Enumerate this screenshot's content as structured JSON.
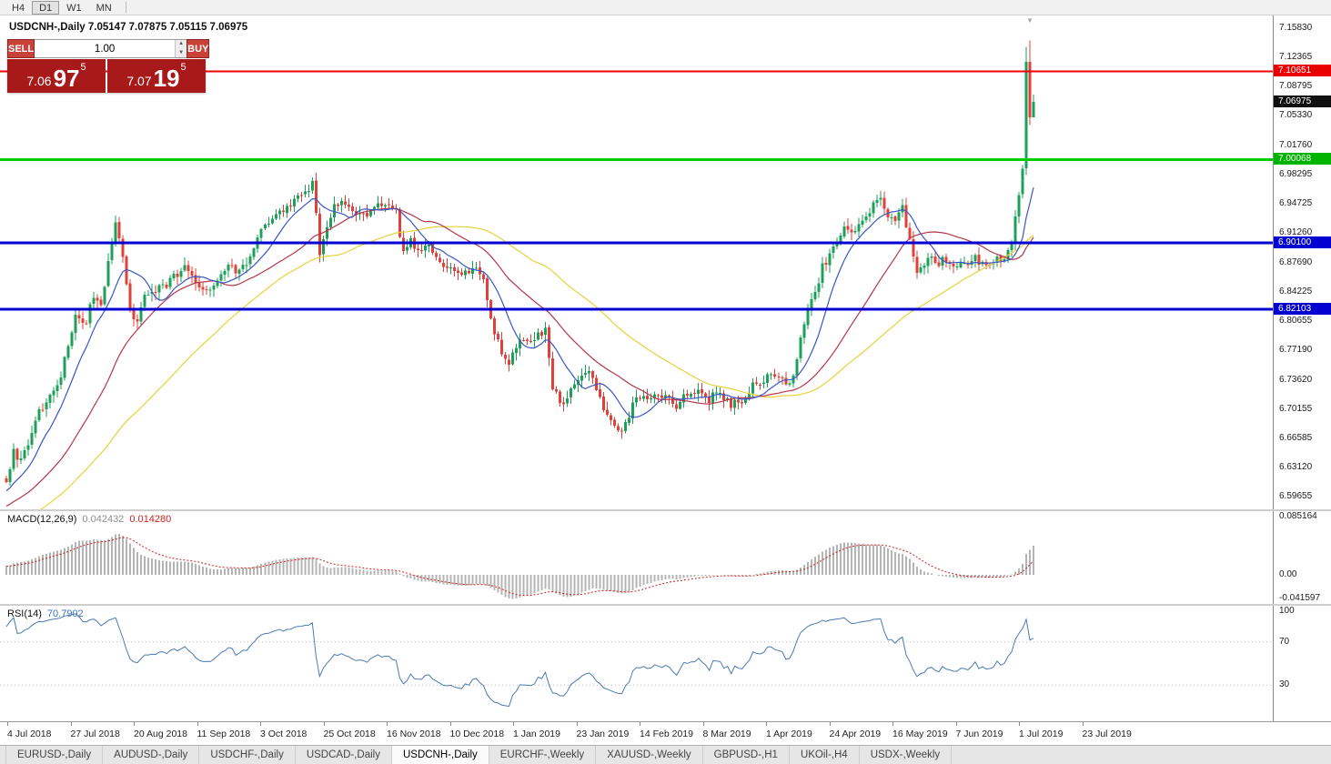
{
  "toolbar": {
    "buttons": [
      "H4",
      "D1",
      "W1",
      "MN"
    ],
    "active": "D1"
  },
  "chart": {
    "title": "USDCNH-,Daily  7.05147 7.07875 7.05115 7.06975"
  },
  "trade_panel": {
    "sell_label": "SELL",
    "buy_label": "BUY",
    "volume": "1.00",
    "spin_up": "▲",
    "spin_down": "▼",
    "sell_price": {
      "main": "7.06",
      "pips": "97",
      "point": "5"
    },
    "buy_price": {
      "main": "7.07",
      "pips": "19",
      "point": "5"
    }
  },
  "icons": {
    "shift_marker": "▼"
  },
  "price_axis": {
    "labels": [
      "7.15830",
      "7.12365",
      "7.08795",
      "7.05330",
      "7.01760",
      "6.98295",
      "6.94725",
      "6.91260",
      "6.87690",
      "6.84225",
      "6.80655",
      "6.77190",
      "6.73620",
      "6.70155",
      "6.66585",
      "6.63120",
      "6.59655"
    ],
    "tags": [
      {
        "value": "7.10651",
        "color": "#e80000"
      },
      {
        "value": "7.06975",
        "color": "#101010"
      },
      {
        "value": "7.00068",
        "color": "#00b400"
      },
      {
        "value": "6.90100",
        "color": "#0000d0"
      },
      {
        "value": "6.82103",
        "color": "#0000d0"
      }
    ]
  },
  "hlines": [
    {
      "price": 7.10651,
      "color": "#f00000",
      "width": 2
    },
    {
      "price": 7.00068,
      "color": "#00cc00",
      "width": 3
    },
    {
      "price": 6.901,
      "color": "#0000d0",
      "width": 3
    },
    {
      "price": 6.82103,
      "color": "#0000d0",
      "width": 3
    }
  ],
  "indicators": {
    "macd": {
      "label": "MACD(12,26,9)",
      "value1": "0.042432",
      "value2": "0.014280",
      "axis": [
        "0.085164",
        "0.00",
        "-0.041597"
      ]
    },
    "rsi": {
      "label": "RSI(14)",
      "value": "70.7902",
      "axis": [
        "100",
        "70",
        "30"
      ],
      "levels": [
        70,
        30
      ]
    }
  },
  "time_axis": [
    "4 Jul 2018",
    "27 Jul 2018",
    "20 Aug 2018",
    "11 Sep 2018",
    "3 Oct 2018",
    "25 Oct 2018",
    "16 Nov 2018",
    "10 Dec 2018",
    "1 Jan 2019",
    "23 Jan 2019",
    "14 Feb 2019",
    "8 Mar 2019",
    "1 Apr 2019",
    "24 Apr 2019",
    "16 May 2019",
    "7 Jun 2019",
    "1 Jul 2019",
    "23 Jul 2019"
  ],
  "tabs": {
    "active_index": 4,
    "items": [
      {
        "label": "EURUSD-,Daily"
      },
      {
        "label": "AUDUSD-,Daily"
      },
      {
        "label": "USDCHF-,Daily"
      },
      {
        "label": "USDCAD-,Daily"
      },
      {
        "label": "USDCNH-,Daily"
      },
      {
        "label": "EURCHF-,Weekly"
      },
      {
        "label": "XAUUSD-,Weekly"
      },
      {
        "label": "GBPUSD-,H1"
      },
      {
        "label": "UKOil-,H4"
      },
      {
        "label": "USDX-,Weekly"
      }
    ]
  },
  "chart_data": {
    "type": "candlestick",
    "symbol": "USDCNH",
    "timeframe": "Daily",
    "count": 283,
    "price_range": [
      6.58126,
      7.17357
    ],
    "current_bar": {
      "open": 7.05147,
      "high": 7.07875,
      "low": 7.05115,
      "close": 7.06975
    },
    "anchors": [
      [
        0,
        6.618
      ],
      [
        2,
        6.65
      ],
      [
        4,
        6.638
      ],
      [
        6,
        6.662
      ],
      [
        9,
        6.701
      ],
      [
        12,
        6.713
      ],
      [
        15,
        6.744
      ],
      [
        17,
        6.781
      ],
      [
        19,
        6.812
      ],
      [
        22,
        6.806
      ],
      [
        24,
        6.838
      ],
      [
        26,
        6.822
      ],
      [
        28,
        6.878
      ],
      [
        30,
        6.928
      ],
      [
        32,
        6.885
      ],
      [
        34,
        6.818
      ],
      [
        36,
        6.81
      ],
      [
        38,
        6.835
      ],
      [
        41,
        6.843
      ],
      [
        44,
        6.851
      ],
      [
        47,
        6.863
      ],
      [
        49,
        6.872
      ],
      [
        52,
        6.853
      ],
      [
        55,
        6.843
      ],
      [
        58,
        6.859
      ],
      [
        61,
        6.873
      ],
      [
        64,
        6.867
      ],
      [
        67,
        6.886
      ],
      [
        70,
        6.917
      ],
      [
        73,
        6.927
      ],
      [
        76,
        6.938
      ],
      [
        79,
        6.951
      ],
      [
        82,
        6.962
      ],
      [
        84,
        6.974
      ],
      [
        85,
        6.94
      ],
      [
        86,
        6.882
      ],
      [
        88,
        6.921
      ],
      [
        90,
        6.944
      ],
      [
        93,
        6.948
      ],
      [
        96,
        6.931
      ],
      [
        99,
        6.938
      ],
      [
        102,
        6.944
      ],
      [
        105,
        6.948
      ],
      [
        107,
        6.941
      ],
      [
        109,
        6.886
      ],
      [
        111,
        6.903
      ],
      [
        113,
        6.889
      ],
      [
        116,
        6.898
      ],
      [
        119,
        6.878
      ],
      [
        122,
        6.868
      ],
      [
        125,
        6.861
      ],
      [
        128,
        6.872
      ],
      [
        131,
        6.856
      ],
      [
        134,
        6.793
      ],
      [
        136,
        6.768
      ],
      [
        138,
        6.757
      ],
      [
        140,
        6.777
      ],
      [
        143,
        6.786
      ],
      [
        146,
        6.789
      ],
      [
        148,
        6.796
      ],
      [
        150,
        6.724
      ],
      [
        153,
        6.707
      ],
      [
        156,
        6.731
      ],
      [
        159,
        6.749
      ],
      [
        161,
        6.741
      ],
      [
        163,
        6.713
      ],
      [
        165,
        6.691
      ],
      [
        168,
        6.671
      ],
      [
        170,
        6.681
      ],
      [
        172,
        6.709
      ],
      [
        175,
        6.713
      ],
      [
        178,
        6.717
      ],
      [
        181,
        6.722
      ],
      [
        184,
        6.707
      ],
      [
        187,
        6.717
      ],
      [
        190,
        6.723
      ],
      [
        193,
        6.714
      ],
      [
        196,
        6.721
      ],
      [
        199,
        6.707
      ],
      [
        202,
        6.711
      ],
      [
        205,
        6.729
      ],
      [
        208,
        6.737
      ],
      [
        211,
        6.741
      ],
      [
        214,
        6.734
      ],
      [
        216,
        6.741
      ],
      [
        218,
        6.791
      ],
      [
        220,
        6.821
      ],
      [
        222,
        6.837
      ],
      [
        224,
        6.871
      ],
      [
        226,
        6.887
      ],
      [
        228,
        6.907
      ],
      [
        230,
        6.917
      ],
      [
        232,
        6.911
      ],
      [
        234,
        6.927
      ],
      [
        236,
        6.934
      ],
      [
        238,
        6.947
      ],
      [
        240,
        6.957
      ],
      [
        242,
        6.931
      ],
      [
        244,
        6.924
      ],
      [
        246,
        6.941
      ],
      [
        248,
        6.906
      ],
      [
        250,
        6.861
      ],
      [
        252,
        6.877
      ],
      [
        254,
        6.881
      ],
      [
        256,
        6.877
      ],
      [
        258,
        6.881
      ],
      [
        260,
        6.874
      ],
      [
        262,
        6.881
      ],
      [
        264,
        6.877
      ],
      [
        266,
        6.881
      ],
      [
        268,
        6.874
      ],
      [
        270,
        6.877
      ],
      [
        272,
        6.881
      ],
      [
        274,
        6.884
      ],
      [
        276,
        6.904
      ],
      [
        277,
        6.931
      ],
      [
        278,
        6.957
      ],
      [
        279,
        6.988
      ]
    ],
    "last_candles": [
      [
        6.99,
        7.136,
        6.982,
        7.118
      ],
      [
        7.118,
        7.1435,
        7.042,
        7.0515
      ],
      [
        7.05147,
        7.07875,
        7.05115,
        7.06975
      ]
    ],
    "ma_periods": {
      "fast": 10,
      "medium": 30,
      "slow": 60
    },
    "colors": {
      "up": "#1fa05a",
      "down": "#e2403a",
      "ma_blue": "#3a56c4",
      "ma_red": "#b5374a",
      "ma_yellow": "#e9d139",
      "macd_hist": "#b4b4b4",
      "macd_signal": "#c62222",
      "rsi": "#4a7ab5"
    }
  }
}
